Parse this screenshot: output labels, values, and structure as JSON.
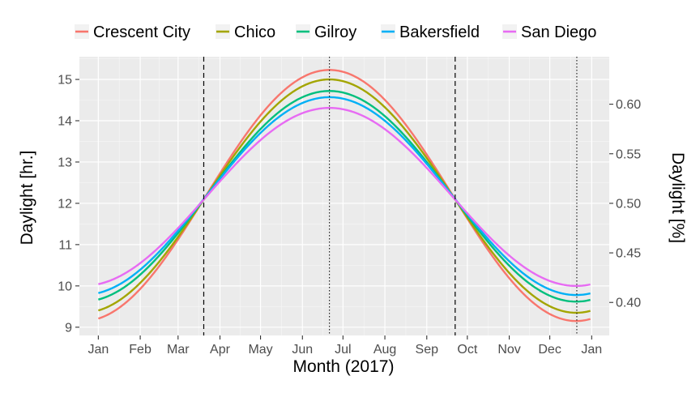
{
  "chart_data": {
    "type": "line",
    "xlabel": "Month (2017)",
    "ylabel": "Daylight [hr.]",
    "y2label": "Daylight [%]",
    "x_ticks": [
      "Jan",
      "Feb",
      "Mar",
      "Apr",
      "May",
      "Jun",
      "Jul",
      "Aug",
      "Sep",
      "Oct",
      "Nov",
      "Dec",
      "Jan"
    ],
    "xlim": [
      "2016-12-18",
      "2018-01-14"
    ],
    "ylim": [
      8.8,
      15.55
    ],
    "y_ticks": [
      9,
      10,
      11,
      12,
      13,
      14,
      15
    ],
    "y2_ticks": [
      "0.40",
      "0.45",
      "0.50",
      "0.55",
      "0.60"
    ],
    "grid": true,
    "legend_position": "top",
    "reference_lines": [
      {
        "date": "2017-03-20",
        "style": "dashed"
      },
      {
        "date": "2017-06-21",
        "style": "dotted"
      },
      {
        "date": "2017-09-22",
        "style": "dashed"
      },
      {
        "date": "2017-12-21",
        "style": "dotted"
      }
    ],
    "series": [
      {
        "name": "Crescent City",
        "color": "#F8766D",
        "min": 9.15,
        "max": 15.23
      },
      {
        "name": "Chico",
        "color": "#A3A500",
        "min": 9.35,
        "max": 15.0
      },
      {
        "name": "Gilroy",
        "color": "#00BF7D",
        "min": 9.62,
        "max": 14.72
      },
      {
        "name": "Bakersfield",
        "color": "#00B0F6",
        "min": 9.78,
        "max": 14.57
      },
      {
        "name": "San Diego",
        "color": "#E76BF3",
        "min": 10.0,
        "max": 14.31
      }
    ]
  }
}
